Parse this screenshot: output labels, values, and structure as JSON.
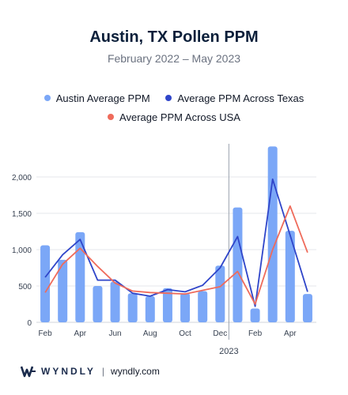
{
  "header": {
    "title": "Austin, TX Pollen PPM",
    "subtitle": "February 2022 – May 2023"
  },
  "legend": [
    {
      "label": "Austin Average PPM",
      "color": "#7ba7f7",
      "shape": "dot"
    },
    {
      "label": "Average PPM Across Texas",
      "color": "#2f45c9",
      "shape": "dot"
    },
    {
      "label": "Average PPM Across USA",
      "color": "#ef6b5b",
      "shape": "dot"
    }
  ],
  "footer": {
    "brand": "WYNDLY",
    "separator": "|",
    "url": "wyndly.com"
  },
  "chart_data": {
    "type": "bar",
    "title": "Austin, TX Pollen PPM",
    "subtitle": "February 2022 – May 2023",
    "categories": [
      "Feb 2022",
      "Mar 2022",
      "Apr 2022",
      "May 2022",
      "Jun 2022",
      "Jul 2022",
      "Aug 2022",
      "Sep 2022",
      "Oct 2022",
      "Nov 2022",
      "Dec 2022",
      "Jan 2023",
      "Feb 2023",
      "Mar 2023",
      "Apr 2023",
      "May 2023"
    ],
    "x_tick_labels": [
      "Feb",
      "",
      "Apr",
      "",
      "Jun",
      "",
      "Aug",
      "",
      "Oct",
      "",
      "Dec",
      "",
      "Feb",
      "",
      "Apr",
      ""
    ],
    "x_secondary_label": "2023",
    "divider_before_index": 11,
    "ylim": [
      0,
      2500
    ],
    "y_ticks": [
      0,
      500,
      1000,
      1500,
      2000
    ],
    "y_tick_labels": [
      "0",
      "500",
      "1,000",
      "1,500",
      "2,000"
    ],
    "grid": true,
    "legend_position": "top",
    "series": [
      {
        "name": "Austin Average PPM",
        "kind": "bar",
        "color": "#7ba7f7",
        "values": [
          1060,
          860,
          1240,
          500,
          560,
          400,
          360,
          470,
          400,
          430,
          780,
          1580,
          190,
          2420,
          1260,
          390
        ]
      },
      {
        "name": "Average PPM Across Texas",
        "kind": "line",
        "color": "#2f45c9",
        "values": [
          620,
          930,
          1140,
          580,
          580,
          400,
          360,
          450,
          420,
          510,
          750,
          1180,
          220,
          1970,
          1200,
          420
        ]
      },
      {
        "name": "Average PPM Across USA",
        "kind": "line",
        "color": "#ef6b5b",
        "values": [
          410,
          800,
          1020,
          770,
          540,
          430,
          410,
          400,
          390,
          440,
          490,
          700,
          250,
          1000,
          1600,
          960
        ]
      }
    ]
  }
}
